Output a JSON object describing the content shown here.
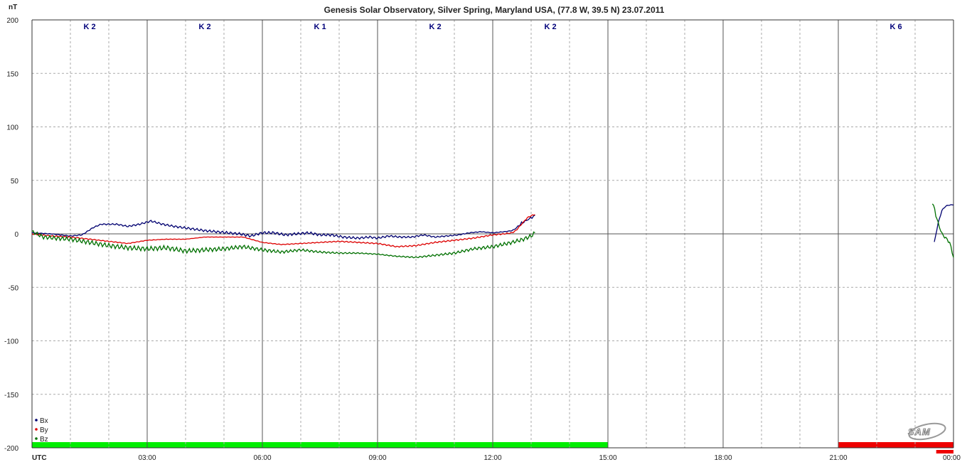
{
  "chart_data": {
    "type": "line",
    "title": "Genesis Solar Observatory, Silver Spring, Maryland USA, (77.8 W, 39.5 N)  23.07.2011",
    "ylabel": "nT",
    "xlabel": "UTC",
    "ylim": [
      -200,
      200
    ],
    "xlim_hours": [
      0,
      24
    ],
    "y_ticks": [
      "200",
      "150",
      "100",
      "50",
      "0",
      "-50",
      "-100",
      "-150",
      "-200"
    ],
    "x_ticks": [
      "03:00",
      "06:00",
      "09:00",
      "12:00",
      "15:00",
      "18:00",
      "21:00",
      "00:00"
    ],
    "k_indices": [
      {
        "label": "K 2",
        "hour": 1.5
      },
      {
        "label": "K 2",
        "hour": 4.5
      },
      {
        "label": "K 1",
        "hour": 7.5
      },
      {
        "label": "K 2",
        "hour": 10.5
      },
      {
        "label": "K 2",
        "hour": 13.5
      },
      {
        "label": "K 6",
        "hour": 22.5
      }
    ],
    "k_bars": [
      {
        "from": 0,
        "to": 15,
        "color": "#00ee00"
      },
      {
        "from": 21,
        "to": 24,
        "color": "#ee0000"
      }
    ],
    "grid": true,
    "legend_position": "bottom-left",
    "logo": "SAM",
    "series": [
      {
        "name": "Bx",
        "color": "#000070",
        "segments": [
          [
            [
              0,
              1
            ],
            [
              0.5,
              0
            ],
            [
              1,
              -2
            ],
            [
              1.3,
              -1
            ],
            [
              1.6,
              6
            ],
            [
              1.8,
              9
            ],
            [
              2.2,
              9
            ],
            [
              2.5,
              7
            ],
            [
              2.8,
              9
            ],
            [
              3.1,
              12
            ],
            [
              3.4,
              9
            ],
            [
              3.7,
              7
            ],
            [
              4.1,
              5
            ],
            [
              4.5,
              3
            ],
            [
              4.8,
              2
            ],
            [
              5.1,
              1
            ],
            [
              5.4,
              0
            ],
            [
              5.7,
              -2
            ],
            [
              6.0,
              1
            ],
            [
              6.3,
              1
            ],
            [
              6.6,
              -1
            ],
            [
              6.9,
              0
            ],
            [
              7.2,
              1
            ],
            [
              7.5,
              -1
            ],
            [
              7.8,
              -1
            ],
            [
              8.1,
              -3
            ],
            [
              8.5,
              -4
            ],
            [
              8.8,
              -3
            ],
            [
              9.0,
              -4
            ],
            [
              9.3,
              -2
            ],
            [
              9.6,
              -3
            ],
            [
              9.9,
              -3
            ],
            [
              10.2,
              -1
            ],
            [
              10.5,
              -3
            ],
            [
              10.8,
              -2
            ],
            [
              11.1,
              -1
            ],
            [
              11.4,
              1
            ],
            [
              11.7,
              2
            ],
            [
              12.0,
              1
            ],
            [
              12.3,
              2
            ],
            [
              12.5,
              3
            ],
            [
              12.6,
              5
            ],
            [
              12.75,
              10
            ],
            [
              12.9,
              13
            ],
            [
              13.05,
              16
            ],
            [
              13.1,
              17
            ]
          ],
          [
            [
              23.5,
              -8
            ],
            [
              23.6,
              10
            ],
            [
              23.7,
              22
            ],
            [
              23.8,
              26
            ],
            [
              23.9,
              27
            ],
            [
              24.0,
              27
            ]
          ]
        ]
      },
      {
        "name": "By",
        "color": "#dd0000",
        "segments": [
          [
            [
              0,
              0
            ],
            [
              0.5,
              -2
            ],
            [
              1.0,
              -3
            ],
            [
              1.5,
              -5
            ],
            [
              2.0,
              -7
            ],
            [
              2.5,
              -9
            ],
            [
              3.0,
              -6
            ],
            [
              3.5,
              -5
            ],
            [
              4.0,
              -5
            ],
            [
              4.5,
              -3
            ],
            [
              5.0,
              -3
            ],
            [
              5.5,
              -3
            ],
            [
              6.0,
              -8
            ],
            [
              6.5,
              -10
            ],
            [
              7.0,
              -9
            ],
            [
              7.5,
              -8
            ],
            [
              8.0,
              -7
            ],
            [
              8.5,
              -8
            ],
            [
              9.0,
              -9
            ],
            [
              9.5,
              -12
            ],
            [
              10.0,
              -11
            ],
            [
              10.5,
              -8
            ],
            [
              11.0,
              -6
            ],
            [
              11.5,
              -4
            ],
            [
              12.0,
              -1
            ],
            [
              12.3,
              0
            ],
            [
              12.5,
              1
            ],
            [
              12.6,
              3
            ],
            [
              12.75,
              9
            ],
            [
              12.9,
              15
            ],
            [
              13.0,
              17
            ],
            [
              13.1,
              18
            ]
          ]
        ]
      },
      {
        "name": "Bz",
        "color": "#007000",
        "segments": [
          [
            [
              0,
              2
            ],
            [
              0.3,
              -3
            ],
            [
              0.6,
              -4
            ],
            [
              1.0,
              -5
            ],
            [
              1.5,
              -8
            ],
            [
              2.0,
              -11
            ],
            [
              2.5,
              -13
            ],
            [
              3.0,
              -14
            ],
            [
              3.5,
              -13
            ],
            [
              4.0,
              -16
            ],
            [
              4.5,
              -15
            ],
            [
              5.0,
              -14
            ],
            [
              5.5,
              -12
            ],
            [
              6.0,
              -15
            ],
            [
              6.5,
              -17
            ],
            [
              7.0,
              -15
            ],
            [
              7.5,
              -17
            ],
            [
              8.0,
              -18
            ],
            [
              8.5,
              -18
            ],
            [
              9.0,
              -19
            ],
            [
              9.5,
              -21
            ],
            [
              10.0,
              -22
            ],
            [
              10.5,
              -20
            ],
            [
              11.0,
              -18
            ],
            [
              11.5,
              -14
            ],
            [
              12.0,
              -12
            ],
            [
              12.5,
              -8
            ],
            [
              12.8,
              -5
            ],
            [
              13.0,
              -2
            ],
            [
              13.1,
              1
            ]
          ],
          [
            [
              23.45,
              30
            ],
            [
              23.6,
              10
            ],
            [
              23.7,
              0
            ],
            [
              23.8,
              -4
            ],
            [
              23.9,
              -8
            ],
            [
              24.0,
              -22
            ]
          ]
        ]
      }
    ]
  }
}
